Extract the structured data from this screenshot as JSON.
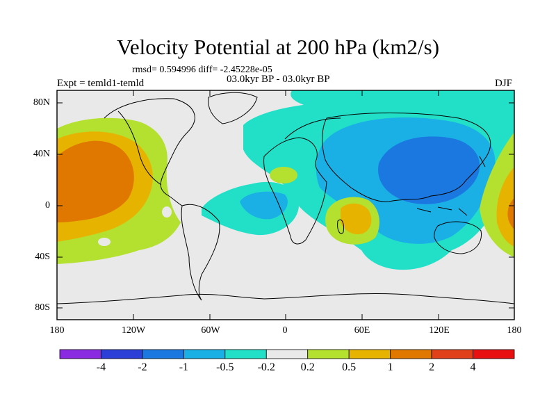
{
  "map": {
    "title": "Velocity Potential at 200 hPa (km2/s)",
    "stats": "rmsd= 0.594996  diff= -2.45228e-05",
    "expt": "Expt = temld1-temld",
    "period": "03.0kyr BP - 03.0kyr BP",
    "season": "DJF",
    "lat_ticks": [
      "80N",
      "40N",
      "0",
      "40S",
      "80S"
    ],
    "lon_ticks": [
      "180",
      "120W",
      "60W",
      "0",
      "60E",
      "120E",
      "180"
    ]
  },
  "colorbar": {
    "labels": [
      "-4",
      "-2",
      "-1",
      "-0.5",
      "-0.2",
      "0.2",
      "0.5",
      "1",
      "2",
      "4"
    ],
    "colors": [
      "#8a2be2",
      "#2c3fd6",
      "#1a78e0",
      "#1ab0e6",
      "#22e0c8",
      "#e9e9e9",
      "#b4e030",
      "#e6b400",
      "#e07800",
      "#e0401a",
      "#e81010"
    ]
  }
}
